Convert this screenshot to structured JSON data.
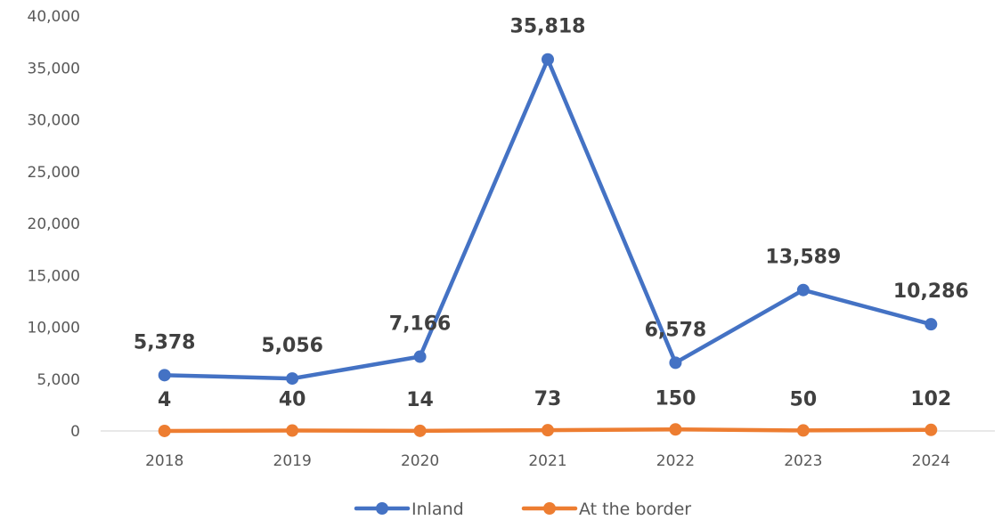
{
  "chart_data": {
    "type": "line",
    "categories": [
      "2018",
      "2019",
      "2020",
      "2021",
      "2022",
      "2023",
      "2024"
    ],
    "series": [
      {
        "name": "Inland",
        "color": "#4472C4",
        "values": [
          5378,
          5056,
          7166,
          35818,
          6578,
          13589,
          10286
        ],
        "labels": [
          "5,378",
          "5,056",
          "7,166",
          "35,818",
          "6,578",
          "13,589",
          "10,286"
        ]
      },
      {
        "name": "At the border",
        "color": "#ED7D31",
        "values": [
          4,
          40,
          14,
          73,
          150,
          50,
          102
        ],
        "labels": [
          "4",
          "40",
          "14",
          "73",
          "150",
          "50",
          "102"
        ]
      }
    ],
    "title": "",
    "xlabel": "",
    "ylabel": "",
    "ylim": [
      0,
      40000
    ],
    "y_ticks": [
      0,
      5000,
      10000,
      15000,
      20000,
      25000,
      30000,
      35000,
      40000
    ],
    "y_tick_labels": [
      "0",
      "5,000",
      "10,000",
      "15,000",
      "20,000",
      "25,000",
      "30,000",
      "35,000",
      "40,000"
    ],
    "grid": false,
    "legend_position": "bottom"
  }
}
